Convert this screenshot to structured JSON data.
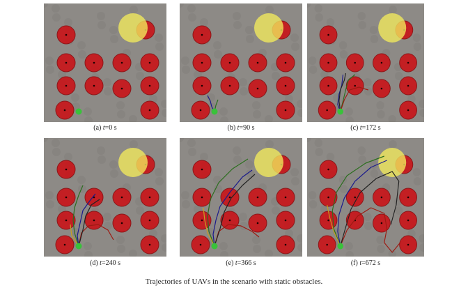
{
  "figure": {
    "caption": "Trajectories of UAVs in the scenario with static obstacles.",
    "panels": [
      {
        "label": "(a) ",
        "var": "t",
        "value": "=0 s"
      },
      {
        "label": "(b) ",
        "var": "t",
        "value": "=90 s"
      },
      {
        "label": "(c) ",
        "var": "t",
        "value": "=172 s"
      },
      {
        "label": "(d) ",
        "var": "t",
        "value": "=240 s"
      },
      {
        "label": "(e) ",
        "var": "t",
        "value": "=366 s"
      },
      {
        "label": "(f) ",
        "var": "t",
        "value": "=672 s"
      }
    ]
  },
  "colors": {
    "background": "#8d8a86",
    "obstacle": "#c8161b",
    "target": "#f2ea5c",
    "uav": "#39c23a",
    "trajectories": [
      "#1a1a8c",
      "#2b6e1e",
      "#9c1a12",
      "#c8a020",
      "#222222"
    ]
  }
}
